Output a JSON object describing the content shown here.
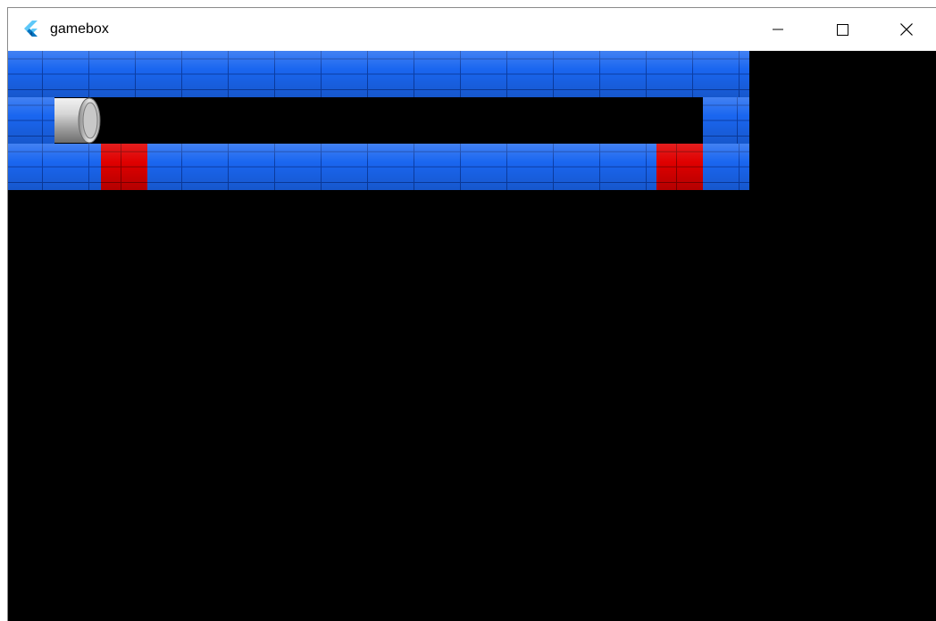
{
  "window": {
    "title": "gamebox",
    "app_icon": "flutter-logo-icon",
    "controls": {
      "minimize": "minimize-icon",
      "maximize": "maximize-icon",
      "close": "close-icon"
    }
  },
  "game": {
    "tiles": {
      "wall_color": "#1a66f0",
      "hazard_color": "#e00000",
      "floor_color": "#000000",
      "pipe": "pipe-icon"
    }
  }
}
